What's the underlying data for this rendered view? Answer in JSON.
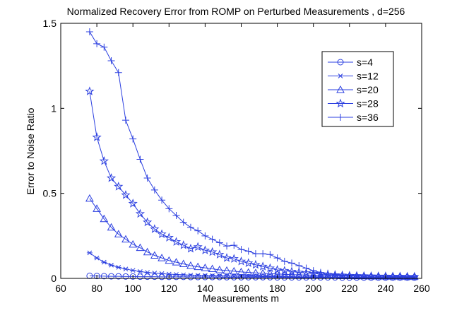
{
  "chart_data": {
    "type": "line",
    "title": "Normalized Recovery Error from ROMP on Perturbed Measurements , d=256",
    "xlabel": "Measurements m",
    "ylabel": "Error to Noise Ratio",
    "xlim": [
      60,
      260
    ],
    "ylim": [
      0,
      1.5
    ],
    "xticks": [
      60,
      80,
      100,
      120,
      140,
      160,
      180,
      200,
      220,
      240,
      260
    ],
    "yticks": [
      0,
      0.5,
      1,
      1.5
    ],
    "xtick_labels": [
      "60",
      "80",
      "100",
      "120",
      "140",
      "160",
      "180",
      "200",
      "220",
      "240",
      "260"
    ],
    "ytick_labels": [
      "0",
      "0.5",
      "1",
      "1.5"
    ],
    "grid": false,
    "legend_position": "top-right",
    "color": "#2b3fe0",
    "x": [
      76,
      80,
      84,
      88,
      92,
      96,
      100,
      104,
      108,
      112,
      116,
      120,
      124,
      128,
      132,
      136,
      140,
      144,
      148,
      152,
      156,
      160,
      164,
      168,
      172,
      176,
      180,
      184,
      188,
      192,
      196,
      200,
      204,
      208,
      212,
      216,
      220,
      224,
      228,
      232,
      236,
      240,
      244,
      248,
      252,
      256
    ],
    "series": [
      {
        "name": "s=4",
        "marker": "circle",
        "values": [
          0.015,
          0.014,
          0.013,
          0.012,
          0.012,
          0.011,
          0.011,
          0.01,
          0.01,
          0.01,
          0.009,
          0.009,
          0.009,
          0.009,
          0.008,
          0.008,
          0.008,
          0.008,
          0.008,
          0.007,
          0.007,
          0.007,
          0.007,
          0.007,
          0.007,
          0.007,
          0.006,
          0.006,
          0.006,
          0.006,
          0.006,
          0.006,
          0.006,
          0.006,
          0.006,
          0.005,
          0.005,
          0.005,
          0.005,
          0.005,
          0.005,
          0.005,
          0.005,
          0.005,
          0.005,
          0.005
        ]
      },
      {
        "name": "s=12",
        "marker": "asterisk",
        "values": [
          0.15,
          0.12,
          0.095,
          0.078,
          0.065,
          0.055,
          0.047,
          0.04,
          0.035,
          0.031,
          0.028,
          0.025,
          0.023,
          0.021,
          0.019,
          0.018,
          0.017,
          0.016,
          0.015,
          0.014,
          0.013,
          0.013,
          0.012,
          0.012,
          0.011,
          0.011,
          0.01,
          0.01,
          0.01,
          0.009,
          0.009,
          0.009,
          0.009,
          0.008,
          0.008,
          0.008,
          0.008,
          0.008,
          0.008,
          0.007,
          0.007,
          0.007,
          0.007,
          0.007,
          0.007,
          0.007
        ]
      },
      {
        "name": "s=20",
        "marker": "triangle",
        "values": [
          0.47,
          0.41,
          0.35,
          0.3,
          0.26,
          0.23,
          0.2,
          0.18,
          0.155,
          0.135,
          0.12,
          0.105,
          0.095,
          0.085,
          0.075,
          0.068,
          0.062,
          0.056,
          0.05,
          0.046,
          0.042,
          0.038,
          0.035,
          0.032,
          0.03,
          0.028,
          0.026,
          0.024,
          0.022,
          0.021,
          0.02,
          0.019,
          0.018,
          0.017,
          0.016,
          0.015,
          0.015,
          0.014,
          0.014,
          0.013,
          0.013,
          0.012,
          0.012,
          0.012,
          0.011,
          0.011
        ]
      },
      {
        "name": "s=28",
        "marker": "star",
        "values": [
          1.1,
          0.83,
          0.69,
          0.59,
          0.54,
          0.49,
          0.44,
          0.38,
          0.33,
          0.29,
          0.26,
          0.24,
          0.215,
          0.195,
          0.175,
          0.185,
          0.165,
          0.155,
          0.14,
          0.12,
          0.115,
          0.1,
          0.09,
          0.08,
          0.07,
          0.06,
          0.05,
          0.045,
          0.04,
          0.035,
          0.032,
          0.028,
          0.025,
          0.022,
          0.02,
          0.018,
          0.016,
          0.015,
          0.014,
          0.013,
          0.012,
          0.012,
          0.011,
          0.011,
          0.01,
          0.01
        ]
      },
      {
        "name": "s=36",
        "marker": "plus",
        "values": [
          1.45,
          1.38,
          1.36,
          1.28,
          1.21,
          0.93,
          0.82,
          0.7,
          0.59,
          0.52,
          0.46,
          0.41,
          0.37,
          0.33,
          0.3,
          0.28,
          0.25,
          0.23,
          0.21,
          0.19,
          0.195,
          0.17,
          0.16,
          0.145,
          0.145,
          0.14,
          0.12,
          0.1,
          0.09,
          0.075,
          0.06,
          0.045,
          0.035,
          0.03,
          0.025,
          0.02,
          0.018,
          0.016,
          0.015,
          0.014,
          0.013,
          0.012,
          0.011,
          0.011,
          0.01,
          0.01
        ]
      }
    ]
  }
}
